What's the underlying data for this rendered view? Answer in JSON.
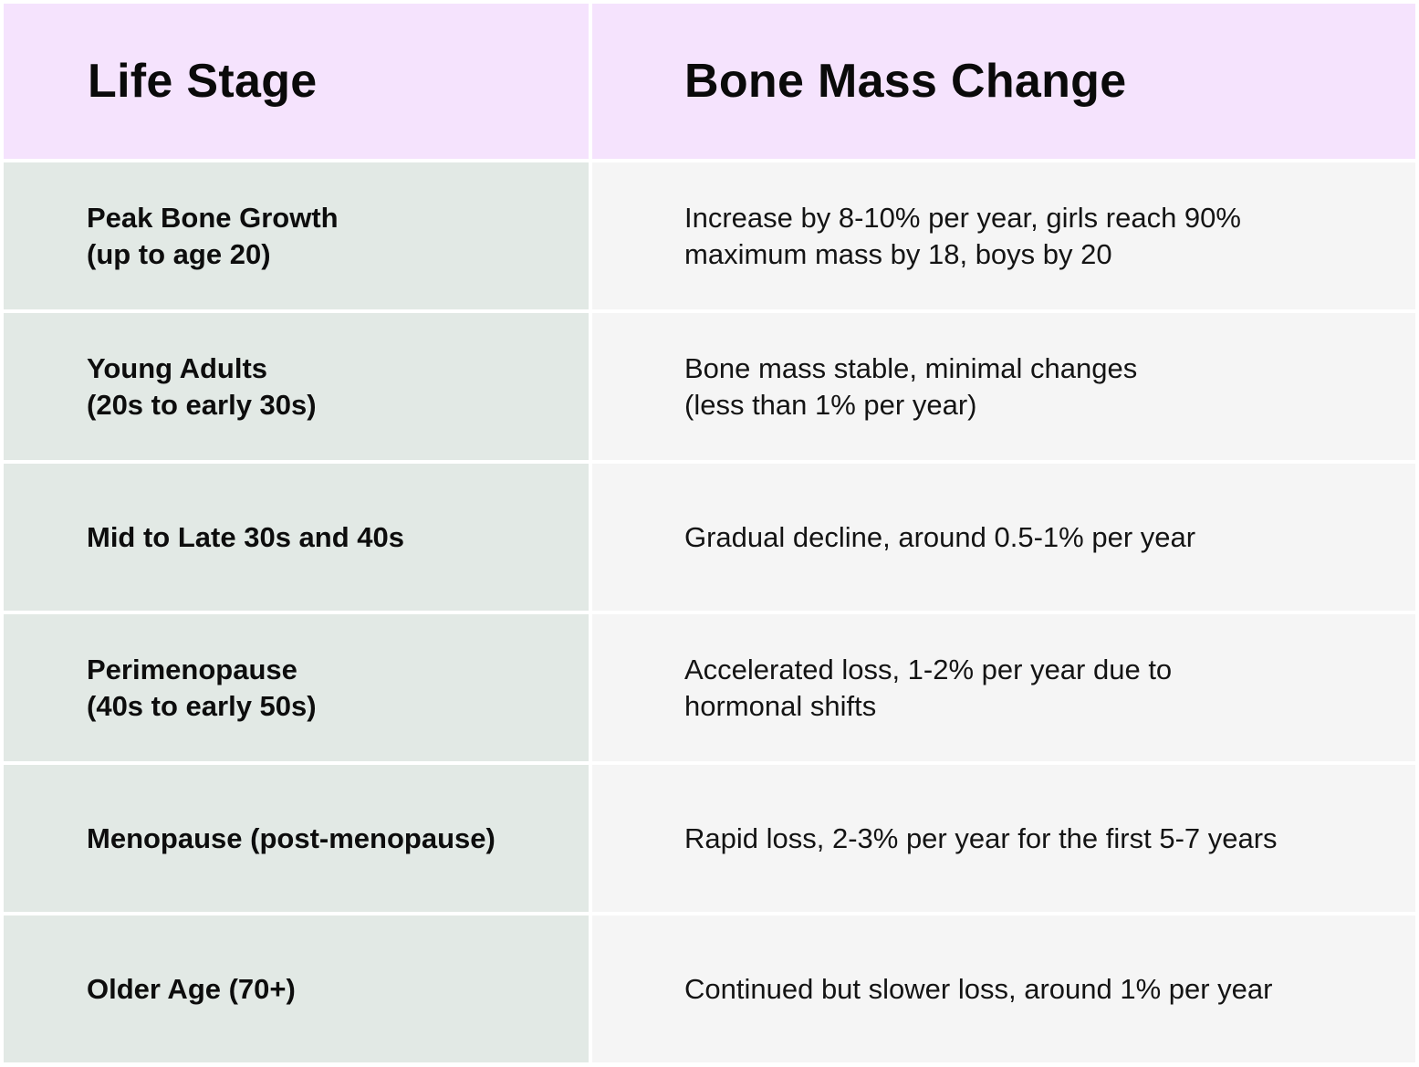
{
  "header": {
    "life_stage": "Life Stage",
    "bone_mass_change": "Bone Mass Change"
  },
  "rows": [
    {
      "stage": [
        "Peak Bone Growth",
        "(up to age 20)"
      ],
      "change": [
        "Increase by 8-10% per year, girls reach 90%",
        "maximum mass by 18, boys by 20"
      ]
    },
    {
      "stage": [
        "Young Adults",
        "(20s to early 30s)"
      ],
      "change": [
        "Bone mass stable, minimal changes",
        "(less than 1% per year)"
      ]
    },
    {
      "stage": [
        "Mid to Late 30s and 40s"
      ],
      "change": [
        "Gradual decline, around 0.5-1% per year"
      ]
    },
    {
      "stage": [
        "Perimenopause",
        "(40s to early 50s)"
      ],
      "change": [
        "Accelerated loss, 1-2% per year due to",
        "hormonal shifts"
      ]
    },
    {
      "stage": [
        "Menopause (post-menopause)"
      ],
      "change": [
        "Rapid loss, 2-3% per year for the first 5-7 years"
      ]
    },
    {
      "stage": [
        "Older Age (70+)"
      ],
      "change": [
        "Continued but slower loss, around 1% per year"
      ]
    }
  ],
  "colors": {
    "header_bg": "#f5e3fd",
    "stage_bg": "#e2e9e5",
    "change_bg": "#f5f5f5"
  }
}
